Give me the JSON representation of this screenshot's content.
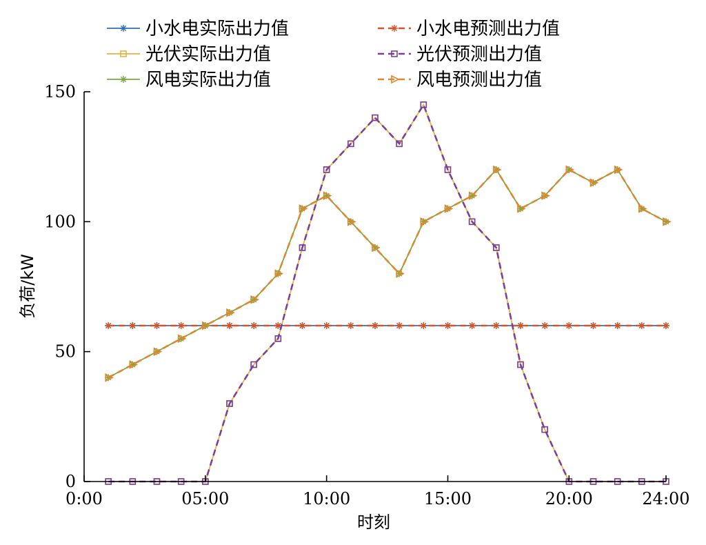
{
  "chart_data": {
    "type": "line",
    "xlabel": "时刻",
    "ylabel": "负荷/kW",
    "xlim": [
      0,
      24
    ],
    "ylim": [
      0,
      150
    ],
    "x_ticks": [
      {
        "value": 0,
        "label": "0:00"
      },
      {
        "value": 5,
        "label": "05:00"
      },
      {
        "value": 10,
        "label": "10:00"
      },
      {
        "value": 15,
        "label": "15:00"
      },
      {
        "value": 20,
        "label": "20:00"
      },
      {
        "value": 24,
        "label": "24:00"
      }
    ],
    "y_ticks": [
      {
        "value": 0,
        "label": "0"
      },
      {
        "value": 50,
        "label": "50"
      },
      {
        "value": 100,
        "label": "100"
      },
      {
        "value": 150,
        "label": "150"
      }
    ],
    "grid": false,
    "legend_position": "top",
    "x": [
      1,
      2,
      3,
      4,
      5,
      6,
      7,
      8,
      9,
      10,
      11,
      12,
      13,
      14,
      15,
      16,
      17,
      18,
      19,
      20,
      21,
      22,
      23,
      24
    ],
    "series": [
      {
        "name": "小水电实际出力值",
        "color": "#2f6fb5",
        "dash": "solid",
        "marker": "star",
        "values": [
          60,
          60,
          60,
          60,
          60,
          60,
          60,
          60,
          60,
          60,
          60,
          60,
          60,
          60,
          60,
          60,
          60,
          60,
          60,
          60,
          60,
          60,
          60,
          60
        ]
      },
      {
        "name": "小水电预测出力值",
        "color": "#d2542a",
        "dash": "dashed",
        "marker": "star",
        "values": [
          60,
          60,
          60,
          60,
          60,
          60,
          60,
          60,
          60,
          60,
          60,
          60,
          60,
          60,
          60,
          60,
          60,
          60,
          60,
          60,
          60,
          60,
          60,
          60
        ]
      },
      {
        "name": "光伏实际出力值",
        "color": "#e8b23c",
        "dash": "solid",
        "marker": "square",
        "values": [
          0,
          0,
          0,
          0,
          0,
          30,
          45,
          55,
          90,
          120,
          130,
          140,
          130,
          145,
          120,
          100,
          90,
          45,
          20,
          0,
          0,
          0,
          0,
          0
        ]
      },
      {
        "name": "光伏预测出力值",
        "color": "#7b3f98",
        "dash": "dashed",
        "marker": "square",
        "values": [
          0,
          0,
          0,
          0,
          0,
          30,
          45,
          55,
          90,
          120,
          130,
          140,
          130,
          145,
          120,
          100,
          90,
          45,
          20,
          0,
          0,
          0,
          0,
          0
        ]
      },
      {
        "name": "风电实际出力值",
        "color": "#77ab43",
        "dash": "solid",
        "marker": "star",
        "values": [
          40,
          45,
          50,
          55,
          60,
          65,
          70,
          80,
          105,
          110,
          100,
          90,
          80,
          100,
          105,
          110,
          120,
          105,
          110,
          120,
          115,
          120,
          105,
          100
        ]
      },
      {
        "name": "风电预测出力值",
        "color": "#e0862e",
        "dash": "dashed",
        "marker": "triangle",
        "values": [
          40,
          45,
          50,
          55,
          60,
          65,
          70,
          80,
          105,
          110,
          100,
          90,
          80,
          100,
          105,
          110,
          120,
          105,
          110,
          120,
          115,
          120,
          105,
          100
        ]
      }
    ]
  }
}
